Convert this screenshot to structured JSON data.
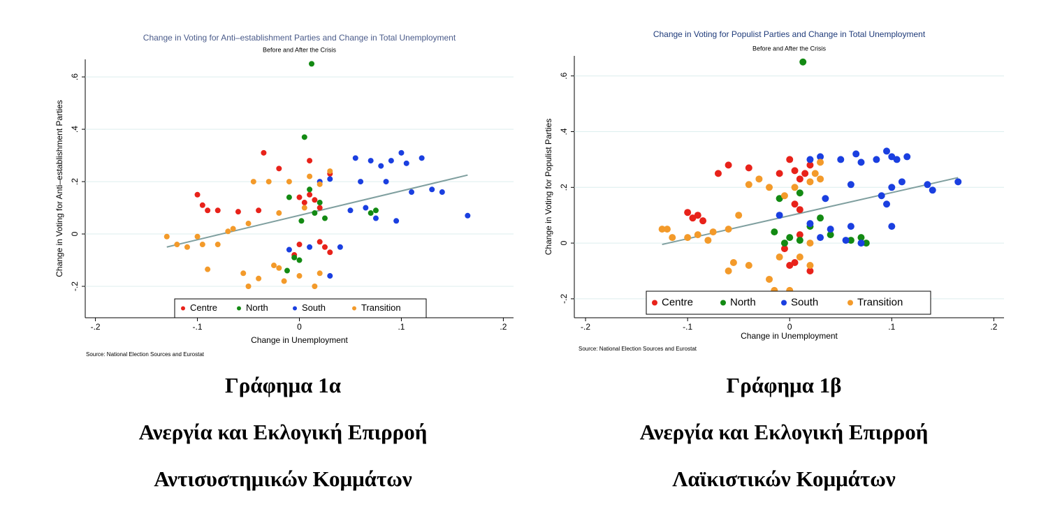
{
  "chart_data": [
    {
      "type": "scatter",
      "title": "Change in Voting for Anti–establishment Parties and Change in Total Unemployment",
      "subtitle": "Before and After the Crisis",
      "x_label": "Change in Unemployment",
      "y_label": "Change in Voting for Anti–establishment Parties",
      "source": "Source: National Election Sources and Eurostat",
      "caption": [
        "Γράφημα 1α",
        "Ανεργία και Εκλογική Επιρροή",
        "Αντισυστημικών Κομμάτων"
      ],
      "xlim": [
        -0.21,
        0.21
      ],
      "ylim": [
        -0.32,
        0.667
      ],
      "xticks": [
        {
          "value": -0.2,
          "label": "-.2"
        },
        {
          "value": -0.1,
          "label": "-.1"
        },
        0,
        {
          "value": 0.1,
          "label": ".1"
        },
        {
          "value": 0.2,
          "label": ".2"
        }
      ],
      "yticks": [
        {
          "value": -0.2,
          "label": "-.2"
        },
        0,
        {
          "value": 0.2,
          "label": ".2"
        },
        {
          "value": 0.4,
          "label": ".4"
        },
        {
          "value": 0.6,
          "label": ".6"
        }
      ],
      "grid": true,
      "series": [
        {
          "name": "Centre",
          "color": "#e8221a",
          "x": [
            -0.1,
            -0.095,
            -0.09,
            -0.08,
            -0.06,
            -0.04,
            -0.035,
            -0.02,
            0,
            0.005,
            0.01,
            0.015,
            0.02,
            0.02,
            0.025,
            0,
            0.01,
            0.03,
            -0.005,
            0.03
          ],
          "values": [
            0.15,
            0.11,
            0.09,
            0.09,
            0.085,
            0.09,
            0.31,
            0.25,
            0.14,
            0.12,
            0.15,
            0.13,
            0.1,
            -0.03,
            -0.05,
            -0.04,
            0.28,
            0.23,
            -0.08,
            -0.07
          ]
        },
        {
          "name": "North",
          "color": "#138a13",
          "x": [
            0.005,
            0.012,
            -0.01,
            0.01,
            0.015,
            0.02,
            0.025,
            0.002,
            0,
            -0.005,
            0.07,
            0.075,
            -0.012
          ],
          "values": [
            0.37,
            0.65,
            0.14,
            0.17,
            0.08,
            0.12,
            0.06,
            0.05,
            -0.1,
            -0.09,
            0.08,
            0.09,
            -0.14
          ]
        },
        {
          "name": "South",
          "color": "#1a3fe0",
          "x": [
            0.055,
            0.07,
            0.08,
            0.09,
            0.1,
            0.105,
            0.12,
            0.11,
            0.14,
            0.165,
            0.06,
            0.065,
            0.075,
            0.095,
            0.03,
            0.05,
            0.04,
            0.03,
            0.01,
            -0.01,
            0.085,
            0.13,
            0.02
          ],
          "values": [
            0.29,
            0.28,
            0.26,
            0.28,
            0.31,
            0.27,
            0.29,
            0.16,
            0.16,
            0.07,
            0.2,
            0.1,
            0.06,
            0.05,
            0.21,
            0.09,
            -0.05,
            -0.16,
            -0.05,
            -0.06,
            0.2,
            0.17,
            0.2
          ]
        },
        {
          "name": "Transition",
          "color": "#f39a2a",
          "x": [
            -0.13,
            -0.12,
            -0.11,
            -0.1,
            -0.095,
            -0.09,
            -0.08,
            -0.07,
            -0.065,
            -0.05,
            -0.055,
            -0.05,
            -0.04,
            -0.045,
            -0.03,
            -0.02,
            -0.02,
            -0.015,
            0,
            0.01,
            0.015,
            0.02,
            0.03,
            0.02,
            -0.01,
            0.005,
            -0.025
          ],
          "values": [
            -0.01,
            -0.04,
            -0.05,
            -0.01,
            -0.04,
            -0.135,
            -0.04,
            0.01,
            0.02,
            0.04,
            -0.15,
            -0.2,
            -0.17,
            0.2,
            0.2,
            0.08,
            -0.13,
            -0.18,
            -0.16,
            0.22,
            -0.2,
            0.19,
            0.24,
            -0.15,
            0.2,
            0.1,
            -0.12
          ]
        }
      ],
      "fit_line": {
        "color": "#7f9f9f",
        "x": [
          -0.13,
          0.165
        ],
        "values": [
          -0.05,
          0.225
        ]
      }
    },
    {
      "type": "scatter",
      "title": "Change in Voting for Populist Parties and Change in Total Unemployment",
      "subtitle": "Before and After the Crisis",
      "x_label": "Change in Unemployment",
      "y_label": "Change in Voting for Populist Parties",
      "source": "Source: National Election Sources and Eurostat",
      "caption": [
        "Γράφημα 1β",
        "Ανεργία και Εκλογική Επιρροή",
        "Λαϊκιστικών Κομμάτων"
      ],
      "xlim": [
        -0.211,
        0.21
      ],
      "ylim": [
        -0.268,
        0.672
      ],
      "xticks": [
        {
          "value": -0.2,
          "label": "-.2"
        },
        {
          "value": -0.1,
          "label": "-.1"
        },
        0,
        {
          "value": 0.1,
          "label": ".1"
        },
        {
          "value": 0.2,
          "label": ".2"
        }
      ],
      "yticks": [
        {
          "value": -0.2,
          "label": "-.2"
        },
        0,
        {
          "value": 0.2,
          "label": ".2"
        },
        {
          "value": 0.4,
          "label": ".4"
        },
        {
          "value": 0.6,
          "label": ".6"
        }
      ],
      "grid": true,
      "series": [
        {
          "name": "Centre",
          "color": "#e8221a",
          "x": [
            -0.1,
            -0.095,
            -0.09,
            -0.085,
            -0.06,
            -0.04,
            -0.07,
            -0.01,
            0,
            0.005,
            0.01,
            0.015,
            0.005,
            0.01,
            0,
            0.005,
            0.02,
            0.02,
            0.01,
            -0.005
          ],
          "values": [
            0.11,
            0.09,
            0.1,
            0.08,
            0.28,
            0.27,
            0.25,
            0.25,
            0.3,
            0.26,
            0.23,
            0.25,
            0.14,
            0.12,
            -0.08,
            -0.07,
            -0.1,
            0.28,
            0.03,
            -0.02
          ]
        },
        {
          "name": "North",
          "color": "#138a13",
          "x": [
            0.013,
            0.01,
            -0.01,
            0,
            -0.005,
            0.01,
            0.02,
            0.03,
            0.04,
            0.06,
            0.07,
            0.075,
            -0.015
          ],
          "values": [
            0.65,
            0.18,
            0.16,
            0.02,
            0,
            0.01,
            0.06,
            0.09,
            0.03,
            0.01,
            0.02,
            0,
            0.04
          ]
        },
        {
          "name": "South",
          "color": "#1a3fe0",
          "x": [
            0.02,
            0.03,
            0.05,
            0.065,
            0.07,
            0.085,
            0.095,
            0.1,
            0.105,
            0.115,
            0.11,
            0.135,
            0.14,
            0.165,
            0.09,
            0.1,
            0.095,
            0.1,
            0.06,
            0.06,
            0.055,
            0.07,
            0.04,
            0.02,
            0.03,
            0.035,
            -0.01
          ],
          "values": [
            0.3,
            0.31,
            0.3,
            0.32,
            0.29,
            0.3,
            0.33,
            0.31,
            0.3,
            0.31,
            0.22,
            0.21,
            0.19,
            0.22,
            0.17,
            0.2,
            0.14,
            0.06,
            0.21,
            0.06,
            0.01,
            0,
            0.05,
            0.07,
            0.02,
            0.16,
            0.1
          ]
        },
        {
          "name": "Transition",
          "color": "#f39a2a",
          "x": [
            -0.125,
            -0.12,
            -0.115,
            -0.1,
            -0.09,
            -0.08,
            -0.075,
            -0.06,
            -0.05,
            -0.055,
            -0.04,
            -0.06,
            -0.04,
            -0.03,
            -0.02,
            -0.01,
            -0.02,
            -0.015,
            0,
            0.005,
            0.02,
            0.025,
            0.03,
            0.03,
            0.01,
            0.02,
            -0.005,
            0.02
          ],
          "values": [
            0.05,
            0.05,
            0.02,
            0.02,
            0.03,
            0.01,
            0.04,
            0.05,
            0.1,
            -0.07,
            -0.08,
            -0.1,
            0.21,
            0.23,
            0.2,
            -0.05,
            -0.13,
            -0.17,
            -0.17,
            0.2,
            0.22,
            0.25,
            0.29,
            0.23,
            -0.05,
            -0.08,
            0.17,
            0
          ]
        }
      ],
      "fit_line": {
        "color": "#7f9f9f",
        "x": [
          -0.125,
          0.165
        ],
        "values": [
          -0.005,
          0.235
        ]
      }
    }
  ]
}
